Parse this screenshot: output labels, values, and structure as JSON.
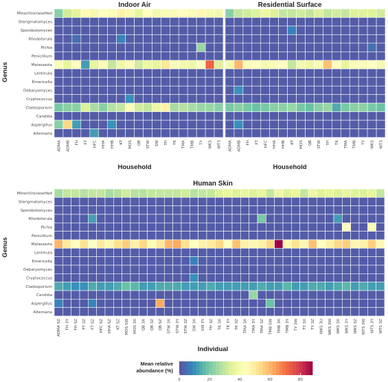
{
  "chart_data": [
    {
      "type": "heatmap",
      "title": "Indoor Air",
      "xlabel": "Household",
      "ylabel": "Genus",
      "y_categories": [
        "Minor/Unclassified",
        "Sterigmatomyces",
        "Sporobolomyces",
        "Rhodotorula",
        "Pichia",
        "Penicillium",
        "Malassezia",
        "Lentinula",
        "Emericella",
        "Debaryomyces",
        "Cryptococcus",
        "Cladosporium",
        "Candida",
        "Aspergillus",
        "Alternaria"
      ],
      "x_categories": [
        "ADMA",
        "ADMB",
        "FH",
        "FT",
        "HFC",
        "HHA",
        "HHB",
        "KT",
        "MOS",
        "QB",
        "STW",
        "SW",
        "TH",
        "TK",
        "TMA",
        "TMB",
        "TY",
        "WKS",
        "WTS"
      ],
      "values": [
        [
          22,
          32,
          35,
          45,
          40,
          44,
          42,
          48,
          46,
          36,
          44,
          40,
          42,
          42,
          44,
          42,
          46,
          40,
          40
        ],
        [
          2,
          2,
          2,
          2,
          2,
          2,
          2,
          2,
          2,
          2,
          2,
          2,
          2,
          2,
          2,
          2,
          2,
          2,
          2
        ],
        [
          2,
          2,
          2,
          2,
          2,
          2,
          2,
          2,
          2,
          2,
          2,
          2,
          2,
          2,
          2,
          2,
          2,
          2,
          2
        ],
        [
          2,
          2,
          5,
          2,
          2,
          2,
          2,
          8,
          2,
          2,
          2,
          2,
          2,
          2,
          2,
          2,
          2,
          2,
          2
        ],
        [
          2,
          2,
          2,
          2,
          2,
          2,
          2,
          2,
          2,
          2,
          2,
          2,
          2,
          2,
          2,
          2,
          24,
          2,
          2
        ],
        [
          2,
          2,
          2,
          2,
          2,
          2,
          2,
          2,
          2,
          2,
          2,
          2,
          2,
          2,
          2,
          2,
          2,
          2,
          2
        ],
        [
          42,
          36,
          44,
          12,
          36,
          42,
          30,
          38,
          45,
          32,
          38,
          36,
          50,
          42,
          40,
          38,
          44,
          72,
          34
        ],
        [
          2,
          2,
          2,
          2,
          2,
          2,
          2,
          2,
          2,
          2,
          2,
          2,
          2,
          2,
          2,
          2,
          2,
          2,
          2
        ],
        [
          2,
          2,
          2,
          2,
          2,
          2,
          2,
          2,
          2,
          2,
          2,
          2,
          2,
          2,
          2,
          2,
          2,
          2,
          2
        ],
        [
          2,
          2,
          2,
          2,
          2,
          2,
          2,
          2,
          2,
          2,
          2,
          2,
          2,
          2,
          2,
          2,
          2,
          2,
          2
        ],
        [
          2,
          2,
          2,
          2,
          2,
          2,
          2,
          2,
          10,
          2,
          2,
          2,
          2,
          2,
          2,
          2,
          2,
          2,
          2
        ],
        [
          20,
          22,
          22,
          34,
          26,
          22,
          28,
          30,
          42,
          32,
          30,
          38,
          48,
          26,
          28,
          26,
          24,
          24,
          22
        ],
        [
          2,
          2,
          2,
          2,
          2,
          2,
          2,
          2,
          2,
          2,
          2,
          2,
          2,
          2,
          2,
          2,
          2,
          2,
          2
        ],
        [
          22,
          54,
          12,
          2,
          2,
          2,
          10,
          2,
          2,
          2,
          2,
          2,
          2,
          2,
          2,
          2,
          2,
          2,
          2
        ],
        [
          2,
          2,
          2,
          2,
          12,
          2,
          2,
          2,
          2,
          2,
          2,
          2,
          2,
          2,
          2,
          2,
          2,
          2,
          2
        ]
      ]
    },
    {
      "type": "heatmap",
      "title": "Residential Surface",
      "xlabel": "Household",
      "y_categories": [
        "Minor/Unclassified",
        "Sterigmatomyces",
        "Sporobolomyces",
        "Rhodotorula",
        "Pichia",
        "Penicillium",
        "Malassezia",
        "Lentinula",
        "Emericella",
        "Debaryomyces",
        "Cryptococcus",
        "Cladosporium",
        "Candida",
        "Aspergillus",
        "Alternaria"
      ],
      "x_categories": [
        "ADMA",
        "ADMB",
        "FH",
        "FT",
        "HFC",
        "HHA",
        "HHB",
        "KT",
        "MOS",
        "QB",
        "STW",
        "TH",
        "TK",
        "TMA",
        "TMB",
        "TY",
        "WKS",
        "WTS"
      ],
      "values": [
        [
          22,
          30,
          32,
          34,
          38,
          34,
          30,
          30,
          32,
          30,
          34,
          30,
          32,
          30,
          34,
          34,
          34,
          32
        ],
        [
          2,
          2,
          2,
          2,
          2,
          2,
          2,
          2,
          2,
          2,
          2,
          2,
          2,
          2,
          2,
          2,
          2,
          2
        ],
        [
          2,
          2,
          2,
          2,
          2,
          2,
          2,
          8,
          2,
          2,
          2,
          2,
          2,
          2,
          2,
          2,
          2,
          2
        ],
        [
          2,
          2,
          2,
          2,
          2,
          2,
          2,
          2,
          2,
          2,
          2,
          2,
          2,
          2,
          2,
          2,
          2,
          2
        ],
        [
          2,
          2,
          2,
          2,
          2,
          2,
          2,
          2,
          2,
          2,
          2,
          2,
          2,
          2,
          2,
          2,
          5,
          2
        ],
        [
          2,
          2,
          2,
          2,
          2,
          2,
          2,
          2,
          2,
          2,
          2,
          2,
          2,
          2,
          2,
          2,
          2,
          2
        ],
        [
          40,
          60,
          42,
          44,
          40,
          42,
          44,
          30,
          40,
          38,
          42,
          58,
          44,
          36,
          42,
          42,
          44,
          40
        ],
        [
          2,
          2,
          2,
          2,
          2,
          2,
          2,
          2,
          2,
          2,
          2,
          2,
          2,
          2,
          2,
          2,
          2,
          2
        ],
        [
          2,
          2,
          2,
          2,
          2,
          2,
          2,
          2,
          2,
          2,
          2,
          2,
          2,
          2,
          2,
          2,
          2,
          2
        ],
        [
          2,
          10,
          2,
          2,
          2,
          2,
          2,
          2,
          2,
          2,
          2,
          2,
          2,
          2,
          2,
          2,
          2,
          2
        ],
        [
          2,
          2,
          2,
          2,
          2,
          2,
          2,
          2,
          2,
          2,
          2,
          2,
          2,
          2,
          2,
          2,
          2,
          2
        ],
        [
          20,
          22,
          20,
          18,
          20,
          22,
          22,
          24,
          20,
          18,
          22,
          24,
          14,
          20,
          22,
          22,
          20,
          18
        ],
        [
          2,
          2,
          2,
          2,
          2,
          2,
          2,
          2,
          2,
          2,
          2,
          2,
          2,
          2,
          2,
          2,
          2,
          2
        ],
        [
          2,
          10,
          2,
          2,
          2,
          2,
          2,
          2,
          2,
          2,
          2,
          2,
          2,
          2,
          2,
          2,
          2,
          2
        ],
        [
          2,
          2,
          2,
          2,
          2,
          2,
          2,
          2,
          2,
          2,
          2,
          2,
          2,
          2,
          2,
          2,
          2,
          2
        ]
      ]
    },
    {
      "type": "heatmap",
      "title": "Human Skin",
      "xlabel": "Individual",
      "ylabel": "Genus",
      "y_categories": [
        "Minor/Unclassified",
        "Sterigmatomyces",
        "Sporobolomyces",
        "Rhodotorula",
        "Pichia",
        "Penicillium",
        "Malassezia",
        "Lentinula",
        "Emericella",
        "Debaryomyces",
        "Cryptococcus",
        "Cladosporium",
        "Candida",
        "Aspergillus",
        "Alternaria"
      ],
      "x_categories": [
        "ADMA SZ",
        "FH 3Y",
        "FH SZ",
        "FT 3Z",
        "FT SZ",
        "HFC SZ",
        "HHA SZ",
        "KT SZ",
        "MOS SW",
        "MOS 3X",
        "QB 3X",
        "QB 3Z",
        "QB SZ",
        "STW 3X",
        "STW 3Y",
        "STW 3Z",
        "SW 3X",
        "SW 3Y",
        "TH 3Z",
        "TK 3X",
        "TK 3Y",
        "TK 3Z",
        "TMA 3X",
        "TMA 3Y",
        "TMA 3Z",
        "TMB SW",
        "TMB 3X",
        "TMB 3Y",
        "TY 3W",
        "TY 3X",
        "TY 3Z",
        "WKS 3U",
        "WKS 3W",
        "WKS 3X",
        "WKS 3Y",
        "WKS 3Z",
        "WTS 3W",
        "WTS 3Y",
        "WTS 3Z"
      ],
      "values": [
        [
          26,
          30,
          30,
          28,
          30,
          30,
          26,
          28,
          32,
          28,
          28,
          30,
          30,
          30,
          30,
          32,
          28,
          30,
          30,
          34,
          36,
          34,
          36,
          34,
          36,
          30,
          38,
          34,
          36,
          30,
          38,
          34,
          36,
          34,
          36,
          34,
          34,
          36,
          30
        ],
        [
          2,
          2,
          2,
          2,
          2,
          2,
          2,
          2,
          2,
          2,
          2,
          2,
          2,
          2,
          2,
          2,
          2,
          2,
          2,
          2,
          2,
          2,
          2,
          2,
          2,
          2,
          2,
          2,
          2,
          2,
          2,
          2,
          2,
          2,
          2,
          2,
          2,
          2,
          2
        ],
        [
          2,
          2,
          2,
          2,
          2,
          2,
          2,
          2,
          2,
          2,
          2,
          2,
          2,
          2,
          2,
          2,
          2,
          2,
          2,
          2,
          2,
          2,
          2,
          2,
          2,
          2,
          2,
          2,
          2,
          2,
          2,
          2,
          2,
          2,
          2,
          2,
          2,
          2,
          2
        ],
        [
          2,
          2,
          2,
          2,
          12,
          2,
          2,
          2,
          2,
          2,
          2,
          2,
          2,
          2,
          2,
          2,
          2,
          2,
          2,
          2,
          2,
          2,
          2,
          2,
          20,
          2,
          2,
          2,
          2,
          2,
          2,
          2,
          2,
          12,
          2,
          2,
          2,
          2,
          2
        ],
        [
          2,
          2,
          2,
          2,
          2,
          2,
          2,
          2,
          2,
          2,
          2,
          2,
          2,
          2,
          2,
          2,
          2,
          2,
          2,
          2,
          2,
          2,
          2,
          2,
          2,
          2,
          2,
          2,
          2,
          2,
          2,
          2,
          2,
          2,
          42,
          2,
          2,
          42,
          2
        ],
        [
          2,
          2,
          2,
          2,
          2,
          2,
          2,
          2,
          2,
          2,
          2,
          2,
          2,
          2,
          2,
          2,
          2,
          2,
          2,
          2,
          2,
          2,
          2,
          2,
          2,
          2,
          2,
          2,
          2,
          2,
          2,
          2,
          2,
          2,
          2,
          2,
          2,
          2,
          2
        ],
        [
          60,
          50,
          44,
          52,
          44,
          50,
          46,
          52,
          56,
          48,
          54,
          42,
          50,
          60,
          62,
          52,
          44,
          48,
          50,
          54,
          44,
          58,
          48,
          46,
          48,
          54,
          88,
          46,
          52,
          46,
          58,
          44,
          48,
          54,
          56,
          46,
          48,
          56,
          46
        ],
        [
          2,
          2,
          2,
          2,
          2,
          2,
          2,
          2,
          2,
          2,
          2,
          2,
          2,
          2,
          2,
          2,
          2,
          2,
          2,
          2,
          2,
          2,
          2,
          2,
          2,
          2,
          2,
          2,
          2,
          2,
          2,
          2,
          2,
          2,
          2,
          2,
          2,
          2,
          2
        ],
        [
          2,
          2,
          2,
          2,
          2,
          2,
          2,
          2,
          2,
          2,
          2,
          2,
          2,
          2,
          2,
          2,
          8,
          2,
          2,
          2,
          2,
          2,
          2,
          2,
          2,
          2,
          2,
          2,
          2,
          2,
          2,
          2,
          2,
          2,
          2,
          2,
          2,
          2,
          2
        ],
        [
          2,
          2,
          2,
          2,
          2,
          2,
          2,
          2,
          2,
          2,
          2,
          2,
          2,
          2,
          2,
          2,
          2,
          2,
          2,
          2,
          2,
          2,
          2,
          2,
          2,
          2,
          2,
          2,
          2,
          2,
          2,
          2,
          2,
          2,
          2,
          2,
          2,
          2,
          2
        ],
        [
          2,
          2,
          2,
          2,
          2,
          2,
          2,
          2,
          2,
          2,
          2,
          2,
          2,
          2,
          2,
          2,
          10,
          2,
          2,
          2,
          2,
          2,
          2,
          2,
          2,
          2,
          2,
          2,
          2,
          2,
          2,
          2,
          2,
          2,
          2,
          2,
          2,
          2,
          2
        ],
        [
          14,
          12,
          10,
          10,
          14,
          12,
          12,
          14,
          18,
          16,
          12,
          12,
          14,
          14,
          14,
          12,
          12,
          12,
          14,
          12,
          12,
          12,
          12,
          12,
          14,
          12,
          12,
          16,
          12,
          12,
          14,
          14,
          12,
          14,
          16,
          12,
          14,
          12,
          12
        ],
        [
          2,
          2,
          2,
          2,
          2,
          2,
          2,
          2,
          2,
          2,
          2,
          2,
          2,
          2,
          2,
          2,
          2,
          2,
          2,
          2,
          2,
          2,
          2,
          24,
          2,
          2,
          2,
          2,
          2,
          2,
          2,
          2,
          2,
          2,
          2,
          2,
          2,
          2,
          2
        ],
        [
          8,
          2,
          2,
          2,
          8,
          2,
          2,
          2,
          2,
          2,
          2,
          2,
          62,
          2,
          2,
          2,
          2,
          2,
          2,
          2,
          2,
          2,
          2,
          2,
          2,
          18,
          2,
          2,
          2,
          2,
          2,
          2,
          2,
          2,
          2,
          2,
          2,
          2,
          2
        ],
        [
          2,
          2,
          2,
          2,
          2,
          2,
          2,
          2,
          2,
          2,
          2,
          2,
          2,
          2,
          2,
          2,
          2,
          2,
          2,
          2,
          2,
          2,
          2,
          2,
          2,
          2,
          2,
          2,
          2,
          2,
          2,
          2,
          2,
          2,
          2,
          2,
          2,
          2,
          2
        ]
      ]
    }
  ],
  "legend": {
    "title_line1": "Mean relative",
    "title_line2": "abundance (%)",
    "ticks": [
      "0",
      "20",
      "40",
      "60",
      "80"
    ],
    "range": [
      0,
      88
    ],
    "colors": [
      "#5e4fa2",
      "#3288bd",
      "#66c2a5",
      "#abdda4",
      "#e6f598",
      "#ffffbf",
      "#fee08b",
      "#fdae61",
      "#f46d43",
      "#d53e4f",
      "#9e0142"
    ]
  },
  "grid": true
}
